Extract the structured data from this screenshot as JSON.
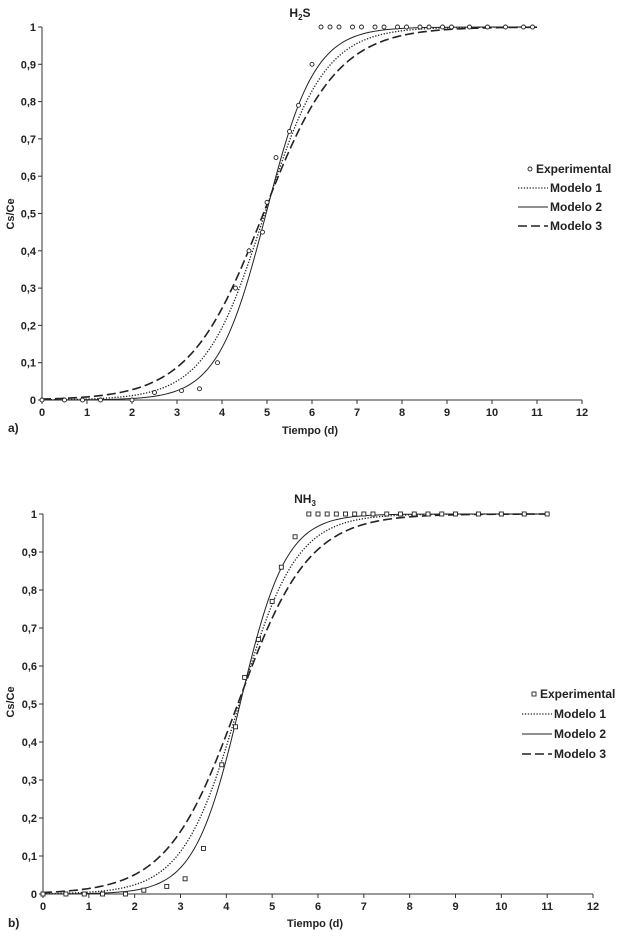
{
  "chart_data": [
    {
      "type": "scatter",
      "panel_label": "a)",
      "title_main": "H",
      "title_sub": "2",
      "title_tail": "S",
      "xlabel": "Tiempo (d)",
      "ylabel": "Cs/Ce",
      "xlim": [
        0,
        12
      ],
      "ylim": [
        0,
        1
      ],
      "xticks": [
        "0",
        "1",
        "2",
        "3",
        "4",
        "5",
        "6",
        "7",
        "8",
        "9",
        "10",
        "11",
        "12"
      ],
      "yticks": [
        "0",
        "0,1",
        "0,2",
        "0,3",
        "0,4",
        "0,5",
        "0,6",
        "0,7",
        "0,8",
        "0,9",
        "1"
      ],
      "grid": false,
      "legend_position": "right",
      "marker": "circle",
      "experimental": {
        "name": "Experimental",
        "x": [
          0,
          0.5,
          0.9,
          1.3,
          2.0,
          2.5,
          3.1,
          3.5,
          3.9,
          4.3,
          4.6,
          4.9,
          5.0,
          5.2,
          5.5,
          5.7,
          6.0,
          6.2,
          6.4,
          6.6,
          6.9,
          7.1,
          7.4,
          7.6,
          7.9,
          8.1,
          8.4,
          8.6,
          8.9,
          9.1,
          9.5,
          9.9,
          10.3,
          10.7,
          10.9
        ],
        "y": [
          0,
          0,
          0,
          0,
          0,
          0.02,
          0.025,
          0.03,
          0.1,
          0.3,
          0.4,
          0.45,
          0.53,
          0.65,
          0.72,
          0.79,
          0.9,
          1,
          1,
          1,
          1,
          1,
          1,
          1,
          1,
          1,
          1,
          1,
          1,
          1,
          1,
          1,
          1,
          1,
          1
        ]
      },
      "models": [
        {
          "name": "Modelo 1",
          "style": "dotted",
          "t0": 4.95,
          "k": 1.5
        },
        {
          "name": "Modelo 2",
          "style": "solid",
          "t0": 4.98,
          "k": 1.85
        },
        {
          "name": "Modelo 3",
          "style": "dashed",
          "t0": 4.92,
          "k": 1.22
        }
      ]
    },
    {
      "type": "scatter",
      "panel_label": "b)",
      "title_main": "NH",
      "title_sub": "3",
      "title_tail": "",
      "xlabel": "Tiempo (d)",
      "ylabel": "Cs/Ce",
      "xlim": [
        0,
        12
      ],
      "ylim": [
        0,
        1
      ],
      "xticks": [
        "0",
        "1",
        "2",
        "3",
        "4",
        "5",
        "6",
        "7",
        "8",
        "9",
        "10",
        "11",
        "12"
      ],
      "yticks": [
        "0",
        "0,1",
        "0,2",
        "0,3",
        "0,4",
        "0,5",
        "0,6",
        "0,7",
        "0,8",
        "0,9",
        "1"
      ],
      "grid": false,
      "legend_position": "right",
      "marker": "square",
      "experimental": {
        "name": "Experimental",
        "x": [
          0,
          0.5,
          0.9,
          1.3,
          1.8,
          2.2,
          2.7,
          3.1,
          3.5,
          3.9,
          4.2,
          4.4,
          4.7,
          5.0,
          5.2,
          5.5,
          5.8,
          6.0,
          6.2,
          6.4,
          6.6,
          6.8,
          7.0,
          7.2,
          7.5,
          7.8,
          8.1,
          8.4,
          8.7,
          9.0,
          9.5,
          10.0,
          10.5,
          11.0
        ],
        "y": [
          0,
          0,
          0,
          0,
          0,
          0.01,
          0.02,
          0.04,
          0.12,
          0.34,
          0.44,
          0.57,
          0.67,
          0.77,
          0.86,
          0.94,
          1,
          1,
          1,
          1,
          1,
          1,
          1,
          1,
          1,
          1,
          1,
          1,
          1,
          1,
          1,
          1,
          1,
          1
        ]
      },
      "models": [
        {
          "name": "Modelo 1",
          "style": "dotted",
          "t0": 4.28,
          "k": 1.62
        },
        {
          "name": "Modelo 2",
          "style": "solid",
          "t0": 4.3,
          "k": 2.0
        },
        {
          "name": "Modelo 3",
          "style": "dashed",
          "t0": 4.25,
          "k": 1.3
        }
      ]
    }
  ]
}
